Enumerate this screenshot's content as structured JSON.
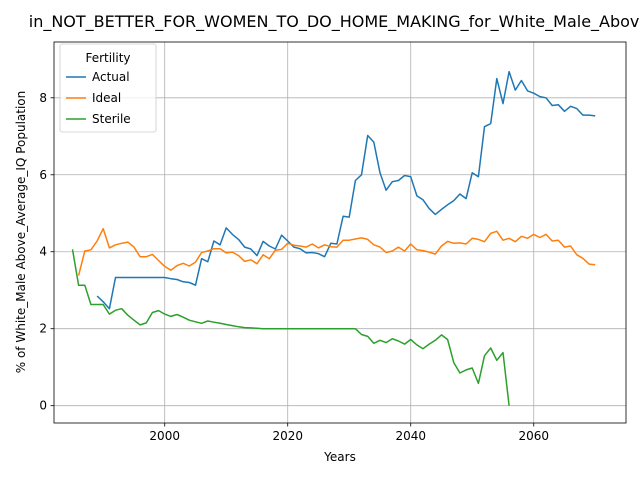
{
  "chart_data": {
    "type": "line",
    "title": "in_NOT_BETTER_FOR_WOMEN_TO_DO_HOME_MAKING_for_White_Male_Above",
    "xlabel": "Years",
    "ylabel": "% of White_Male Above_Average_IQ Population",
    "xlim": [
      1982,
      2075
    ],
    "ylim": [
      -0.45,
      9.45
    ],
    "xticks": [
      2000,
      2020,
      2040,
      2060
    ],
    "yticks": [
      0,
      2,
      4,
      6,
      8
    ],
    "grid": true,
    "legend": {
      "title": "Fertility",
      "position": "top-left"
    },
    "series": [
      {
        "name": "Actual",
        "color": "#1f77b4",
        "x": [
          1989,
          1990,
          1991,
          1992,
          1993,
          1994,
          1995,
          1996,
          1997,
          1998,
          1999,
          2000,
          2001,
          2002,
          2003,
          2004,
          2005,
          2006,
          2007,
          2008,
          2009,
          2010,
          2011,
          2012,
          2013,
          2014,
          2015,
          2016,
          2017,
          2018,
          2019,
          2020,
          2021,
          2022,
          2023,
          2024,
          2025,
          2026,
          2027,
          2028,
          2029,
          2030,
          2031,
          2032,
          2033,
          2034,
          2035,
          2036,
          2037,
          2038,
          2039,
          2040,
          2041,
          2042,
          2043,
          2044,
          2045,
          2046,
          2047,
          2048,
          2049,
          2050,
          2051,
          2052,
          2053,
          2054,
          2055,
          2056,
          2057,
          2058,
          2059,
          2060,
          2061,
          2062,
          2063,
          2064,
          2065,
          2066,
          2067,
          2068,
          2069,
          2070
        ],
        "y": [
          2.85,
          2.7,
          2.52,
          3.33,
          3.33,
          3.33,
          3.33,
          3.33,
          3.33,
          3.33,
          3.33,
          3.33,
          3.3,
          3.28,
          3.22,
          3.2,
          3.13,
          3.82,
          3.74,
          4.28,
          4.18,
          4.62,
          4.45,
          4.32,
          4.12,
          4.07,
          3.9,
          4.27,
          4.15,
          4.07,
          4.43,
          4.28,
          4.12,
          4.08,
          3.97,
          3.98,
          3.95,
          3.87,
          4.22,
          4.2,
          4.92,
          4.9,
          5.85,
          6.0,
          7.02,
          6.85,
          6.05,
          5.6,
          5.82,
          5.85,
          5.98,
          5.95,
          5.45,
          5.35,
          5.12,
          4.97,
          5.1,
          5.22,
          5.33,
          5.5,
          5.38,
          6.05,
          5.95,
          7.25,
          7.33,
          8.5,
          7.85,
          8.68,
          8.2,
          8.45,
          8.18,
          8.12,
          8.03,
          8.0,
          7.8,
          7.82,
          7.65,
          7.78,
          7.72,
          7.55,
          7.55,
          7.53
        ]
      },
      {
        "name": "Ideal",
        "color": "#ff7f0e",
        "x": [
          1986,
          1987,
          1988,
          1989,
          1990,
          1991,
          1992,
          1993,
          1994,
          1995,
          1996,
          1997,
          1998,
          1999,
          2000,
          2001,
          2002,
          2003,
          2004,
          2005,
          2006,
          2007,
          2008,
          2009,
          2010,
          2011,
          2012,
          2013,
          2014,
          2015,
          2016,
          2017,
          2018,
          2019,
          2020,
          2021,
          2022,
          2023,
          2024,
          2025,
          2026,
          2027,
          2028,
          2029,
          2030,
          2031,
          2032,
          2033,
          2034,
          2035,
          2036,
          2037,
          2038,
          2039,
          2040,
          2041,
          2042,
          2043,
          2044,
          2045,
          2046,
          2047,
          2048,
          2049,
          2050,
          2051,
          2052,
          2053,
          2054,
          2055,
          2056,
          2057,
          2058,
          2059,
          2060,
          2061,
          2062,
          2063,
          2064,
          2065,
          2066,
          2067,
          2068,
          2069,
          2070
        ],
        "y": [
          3.38,
          4.02,
          4.05,
          4.28,
          4.6,
          4.1,
          4.18,
          4.22,
          4.25,
          4.12,
          3.87,
          3.87,
          3.93,
          3.77,
          3.62,
          3.52,
          3.64,
          3.7,
          3.63,
          3.73,
          3.98,
          4.02,
          4.08,
          4.08,
          3.97,
          3.99,
          3.9,
          3.75,
          3.79,
          3.69,
          3.92,
          3.82,
          4.04,
          4.06,
          4.22,
          4.17,
          4.15,
          4.12,
          4.2,
          4.1,
          4.18,
          4.13,
          4.12,
          4.3,
          4.3,
          4.33,
          4.36,
          4.32,
          4.18,
          4.12,
          3.98,
          4.02,
          4.12,
          4.02,
          4.2,
          4.05,
          4.03,
          3.99,
          3.94,
          4.15,
          4.27,
          4.22,
          4.23,
          4.2,
          4.35,
          4.32,
          4.26,
          4.48,
          4.53,
          4.3,
          4.35,
          4.26,
          4.4,
          4.35,
          4.45,
          4.37,
          4.45,
          4.28,
          4.3,
          4.12,
          4.15,
          3.92,
          3.83,
          3.68,
          3.66
        ]
      },
      {
        "name": "Sterile",
        "color": "#2ca02c",
        "x": [
          1985,
          1986,
          1987,
          1988,
          1989,
          1990,
          1991,
          1992,
          1993,
          1994,
          1995,
          1996,
          1997,
          1998,
          1999,
          2000,
          2001,
          2002,
          2003,
          2004,
          2005,
          2006,
          2007,
          2008,
          2009,
          2010,
          2011,
          2012,
          2013,
          2014,
          2015,
          2016,
          2017,
          2018,
          2019,
          2020,
          2021,
          2022,
          2023,
          2024,
          2025,
          2026,
          2027,
          2028,
          2029,
          2030,
          2031,
          2032,
          2033,
          2034,
          2035,
          2036,
          2037,
          2038,
          2039,
          2040,
          2041,
          2042,
          2043,
          2044,
          2045,
          2046,
          2047,
          2048,
          2049,
          2050,
          2051,
          2052,
          2053,
          2054,
          2055,
          2056
        ],
        "y": [
          4.06,
          3.13,
          3.13,
          2.63,
          2.63,
          2.63,
          2.38,
          2.48,
          2.52,
          2.35,
          2.22,
          2.1,
          2.15,
          2.42,
          2.47,
          2.38,
          2.32,
          2.37,
          2.3,
          2.22,
          2.18,
          2.14,
          2.2,
          2.17,
          2.14,
          2.11,
          2.08,
          2.05,
          2.03,
          2.02,
          2.01,
          2.0,
          2.0,
          2.0,
          2.0,
          2.0,
          2.0,
          2.0,
          2.0,
          2.0,
          2.0,
          2.0,
          2.0,
          2.0,
          2.0,
          2.0,
          2.0,
          1.85,
          1.8,
          1.62,
          1.7,
          1.64,
          1.74,
          1.68,
          1.6,
          1.72,
          1.58,
          1.48,
          1.6,
          1.7,
          1.84,
          1.72,
          1.12,
          0.85,
          0.93,
          0.98,
          0.58,
          1.3,
          1.5,
          1.18,
          1.38,
          0.0
        ]
      }
    ]
  }
}
